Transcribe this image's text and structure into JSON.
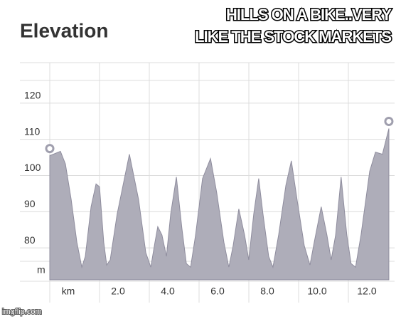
{
  "chart_data": {
    "type": "area",
    "title": "Elevation",
    "caption": [
      "HILLS ON A BIKE..VERY",
      "LIKE THE STOCK MARKETS"
    ],
    "watermark": "imgflip.com",
    "y_label": "m",
    "x_axis_labels": [
      "km",
      "2.0",
      "4.0",
      "6.0",
      "8.0",
      "10.0",
      "12.0"
    ],
    "color": "#aeadb9",
    "x": [
      0.0,
      0.43,
      0.63,
      0.86,
      1.09,
      1.29,
      1.43,
      1.66,
      1.86,
      2.0,
      2.17,
      2.29,
      2.43,
      2.71,
      3.2,
      3.57,
      3.86,
      4.06,
      4.23,
      4.34,
      4.51,
      4.69,
      4.86,
      5.09,
      5.31,
      5.49,
      5.66,
      5.86,
      6.14,
      6.46,
      6.71,
      7.0,
      7.2,
      7.37,
      7.6,
      7.83,
      8.0,
      8.2,
      8.4,
      8.57,
      8.8,
      8.97,
      9.2,
      9.49,
      9.71,
      9.94,
      10.23,
      10.46,
      10.63,
      10.91,
      11.14,
      11.31,
      11.49,
      11.71,
      11.94,
      12.11,
      12.29,
      12.51,
      12.86,
      13.09,
      13.37,
      13.63
    ],
    "values": [
      104.3,
      105.5,
      102.0,
      92.2,
      80.4,
      73.5,
      76.5,
      90.2,
      96.5,
      95.7,
      80.4,
      74.1,
      75.5,
      88.2,
      104.7,
      92.2,
      77.5,
      73.5,
      80.4,
      84.7,
      82.4,
      76.5,
      88.2,
      98.4,
      84.3,
      74.5,
      73.5,
      82.4,
      98.0,
      103.5,
      94.1,
      80.4,
      73.5,
      79.4,
      89.6,
      82.4,
      75.5,
      88.2,
      98.0,
      88.2,
      76.5,
      73.5,
      82.4,
      96.1,
      102.9,
      92.2,
      79.4,
      74.1,
      80.4,
      90.2,
      82.4,
      75.5,
      82.4,
      98.4,
      82.4,
      74.5,
      73.5,
      82.4,
      100.0,
      105.3,
      104.7,
      111.8
    ],
    "xlim": [
      0,
      13.86
    ],
    "ylim": [
      70,
      130
    ],
    "yticks": [
      80,
      90,
      100,
      110,
      120
    ],
    "grid": true
  }
}
